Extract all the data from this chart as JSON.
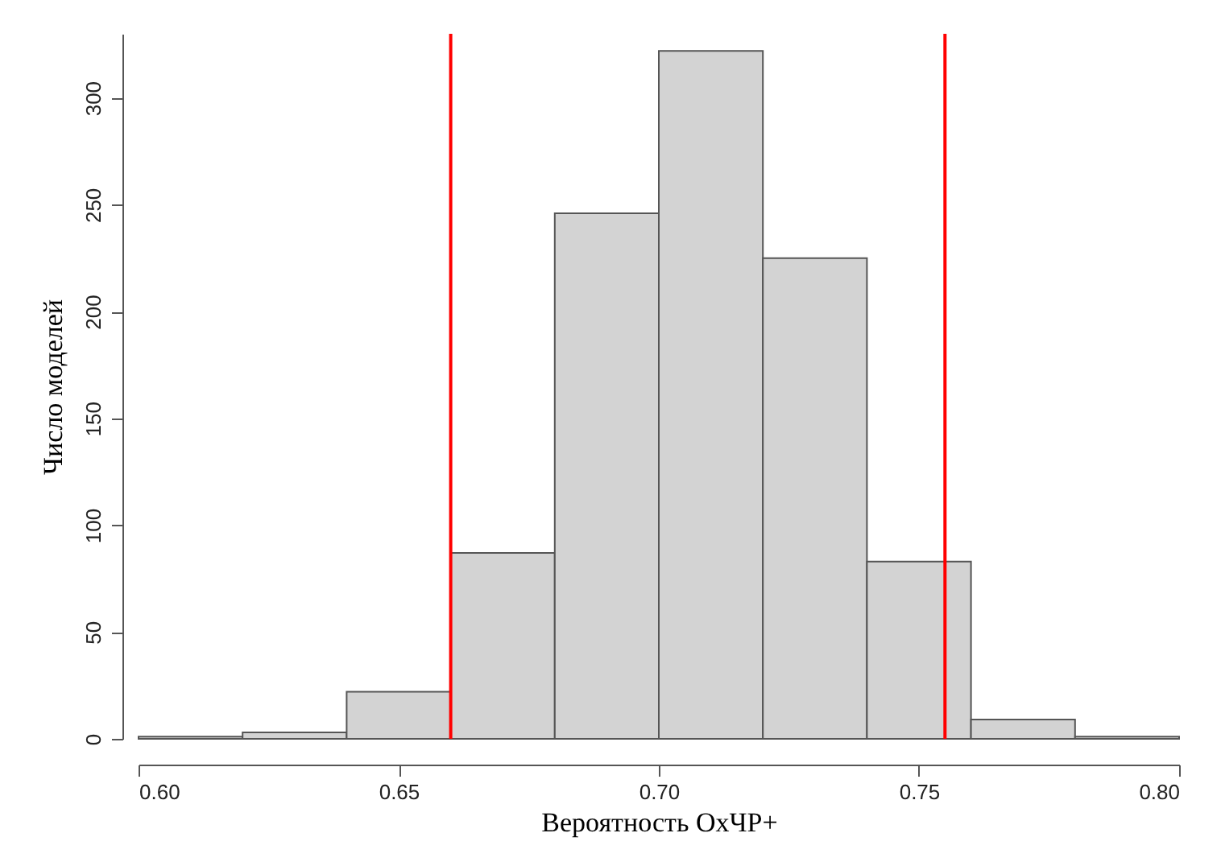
{
  "chart_data": {
    "type": "histogram",
    "xlabel": "Вероятность ОхЧР+",
    "ylabel": "Число моделей",
    "bins": [
      0.6,
      0.62,
      0.64,
      0.66,
      0.68,
      0.7,
      0.72,
      0.74,
      0.76,
      0.78,
      0.8
    ],
    "values": [
      1,
      3,
      22,
      87,
      246,
      322,
      225,
      83,
      9,
      1
    ],
    "color": "#d3d3d3",
    "xlim": [
      0.6,
      0.8
    ],
    "xticks": [
      {
        "value": 0.6,
        "label": "0.60"
      },
      {
        "value": 0.65,
        "label": "0.65"
      },
      {
        "value": 0.7,
        "label": "0.70"
      },
      {
        "value": 0.75,
        "label": "0.75"
      },
      {
        "value": 0.8,
        "label": "0.80"
      }
    ],
    "ylim": [
      0,
      330
    ],
    "yticks": [
      0,
      50,
      100,
      150,
      200,
      250,
      300
    ],
    "grid": false,
    "ref_lines": [
      {
        "axis": "x",
        "value": 0.66,
        "color": "#ff0000"
      },
      {
        "axis": "x",
        "value": 0.755,
        "color": "#ff0000"
      }
    ]
  }
}
